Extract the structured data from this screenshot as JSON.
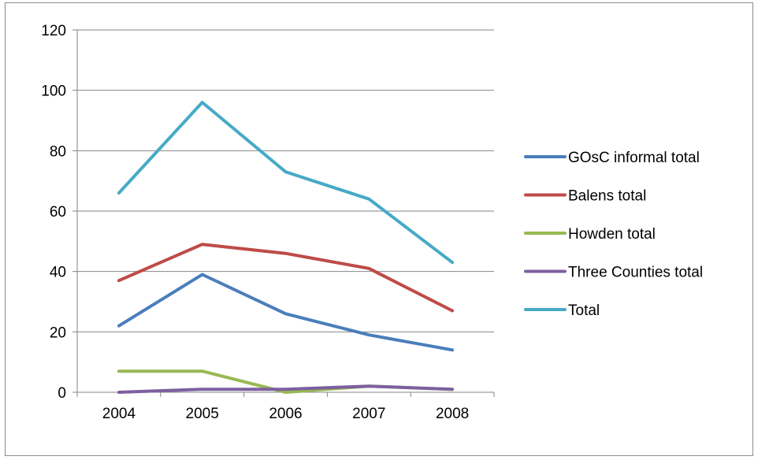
{
  "chart_data": {
    "type": "line",
    "categories": [
      "2004",
      "2005",
      "2006",
      "2007",
      "2008"
    ],
    "ylim": [
      0,
      120
    ],
    "yticks": [
      "0",
      "20",
      "40",
      "60",
      "80",
      "100",
      "120"
    ],
    "grid": true,
    "legend_position": "right",
    "series": [
      {
        "name": "GOsC informal total",
        "color": "#4a7ebb",
        "values": [
          22,
          39,
          26,
          19,
          14
        ]
      },
      {
        "name": "Balens total",
        "color": "#be4b48",
        "values": [
          37,
          49,
          46,
          41,
          27
        ]
      },
      {
        "name": "Howden total",
        "color": "#98b954",
        "values": [
          7,
          7,
          0,
          2,
          1
        ]
      },
      {
        "name": "Three Counties total",
        "color": "#7d60a0",
        "values": [
          0,
          1,
          1,
          2,
          1
        ]
      },
      {
        "name": "Total",
        "color": "#46aac5",
        "values": [
          66,
          96,
          73,
          64,
          43
        ]
      }
    ]
  }
}
